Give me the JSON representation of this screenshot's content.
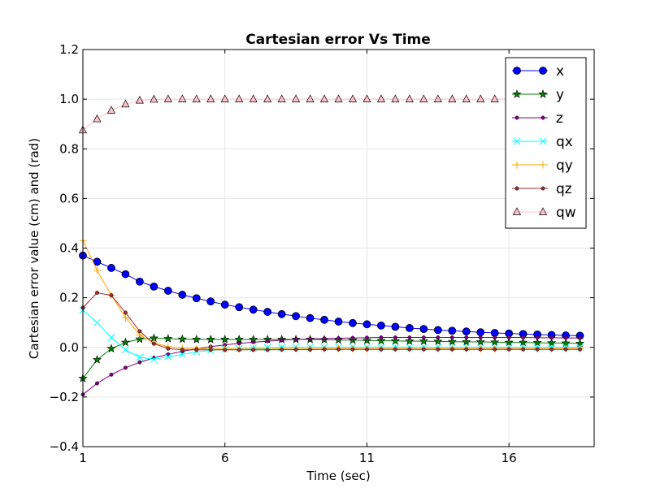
{
  "chart_data": {
    "type": "line",
    "title": "Cartesian error Vs Time",
    "xlabel": "Time (sec)",
    "ylabel": "Cartesian error value (cm) and (rad)",
    "xlim": [
      1,
      19
    ],
    "ylim": [
      -0.4,
      1.2
    ],
    "xticks": [
      1,
      6,
      11,
      16
    ],
    "xtick_labels": [
      "1",
      "6",
      "11",
      "16"
    ],
    "yticks": [
      -0.4,
      -0.2,
      0.0,
      0.2,
      0.4,
      0.6,
      0.8,
      1.0,
      1.2
    ],
    "ytick_labels": [
      "−0.4",
      "−0.2",
      "0.0",
      "0.2",
      "0.4",
      "0.6",
      "0.8",
      "1.0",
      "1.2"
    ],
    "grid": true,
    "legend_position": "top-right",
    "x": [
      1.0,
      1.5,
      2.0,
      2.5,
      3.0,
      3.5,
      4.0,
      4.5,
      5.0,
      5.5,
      6.0,
      6.5,
      7.0,
      7.5,
      8.0,
      8.5,
      9.0,
      9.5,
      10.0,
      10.5,
      11.0,
      11.5,
      12.0,
      12.5,
      13.0,
      13.5,
      14.0,
      14.5,
      15.0,
      15.5,
      16.0,
      16.5,
      17.0,
      17.5,
      18.0,
      18.5
    ],
    "series": [
      {
        "name": "x",
        "color": "#0000ff",
        "marker": "circle",
        "values": [
          0.37,
          0.345,
          0.32,
          0.295,
          0.265,
          0.245,
          0.228,
          0.212,
          0.198,
          0.185,
          0.172,
          0.162,
          0.152,
          0.143,
          0.134,
          0.126,
          0.118,
          0.111,
          0.104,
          0.098,
          0.093,
          0.088,
          0.083,
          0.078,
          0.074,
          0.07,
          0.067,
          0.064,
          0.061,
          0.058,
          0.056,
          0.054,
          0.052,
          0.05,
          0.048,
          0.047
        ]
      },
      {
        "name": "y",
        "color": "#008000",
        "marker": "star",
        "values": [
          -0.125,
          -0.05,
          -0.005,
          0.02,
          0.033,
          0.037,
          0.035,
          0.033,
          0.032,
          0.032,
          0.032,
          0.032,
          0.032,
          0.032,
          0.032,
          0.032,
          0.032,
          0.031,
          0.03,
          0.029,
          0.028,
          0.027,
          0.026,
          0.025,
          0.025,
          0.024,
          0.023,
          0.022,
          0.022,
          0.021,
          0.02,
          0.02,
          0.019,
          0.018,
          0.017,
          0.016
        ]
      },
      {
        "name": "z",
        "color": "#800080",
        "marker": "dot",
        "values": [
          -0.19,
          -0.145,
          -0.11,
          -0.082,
          -0.06,
          -0.042,
          -0.028,
          -0.016,
          -0.006,
          0.003,
          0.01,
          0.016,
          0.021,
          0.025,
          0.029,
          0.032,
          0.034,
          0.036,
          0.037,
          0.038,
          0.039,
          0.04,
          0.04,
          0.04,
          0.04,
          0.04,
          0.04,
          0.04,
          0.04,
          0.04,
          0.04,
          0.04,
          0.039,
          0.039,
          0.038,
          0.038
        ]
      },
      {
        "name": "qx",
        "color": "#00ffff",
        "marker": "x",
        "values": [
          0.15,
          0.1,
          0.04,
          -0.01,
          -0.04,
          -0.048,
          -0.038,
          -0.028,
          -0.018,
          -0.012,
          -0.008,
          -0.005,
          -0.003,
          -0.001,
          0.0,
          0.001,
          0.001,
          0.001,
          0.001,
          0.001,
          0.001,
          0.001,
          0.001,
          0.001,
          0.001,
          0.001,
          0.001,
          0.001,
          0.001,
          0.001,
          0.001,
          0.001,
          0.001,
          0.001,
          0.001,
          0.001
        ]
      },
      {
        "name": "qy",
        "color": "#ffa500",
        "marker": "plus",
        "values": [
          0.43,
          0.31,
          0.21,
          0.12,
          0.05,
          0.018,
          0.003,
          -0.003,
          -0.005,
          -0.006,
          -0.006,
          -0.006,
          -0.006,
          -0.006,
          -0.005,
          -0.005,
          -0.005,
          -0.005,
          -0.005,
          -0.005,
          -0.005,
          -0.005,
          -0.005,
          -0.005,
          -0.005,
          -0.005,
          -0.005,
          -0.005,
          -0.005,
          -0.005,
          -0.005,
          -0.005,
          -0.005,
          -0.005,
          -0.005,
          -0.005
        ]
      },
      {
        "name": "qz",
        "color": "#a52a2a",
        "marker": "dot",
        "values": [
          0.16,
          0.22,
          0.21,
          0.14,
          0.065,
          0.015,
          -0.005,
          -0.01,
          -0.01,
          -0.01,
          -0.01,
          -0.01,
          -0.01,
          -0.01,
          -0.009,
          -0.009,
          -0.009,
          -0.008,
          -0.008,
          -0.008,
          -0.008,
          -0.008,
          -0.008,
          -0.008,
          -0.008,
          -0.008,
          -0.008,
          -0.008,
          -0.008,
          -0.008,
          -0.008,
          -0.008,
          -0.008,
          -0.008,
          -0.008,
          -0.008
        ]
      },
      {
        "name": "qw",
        "color": "#ffc0cb",
        "marker": "triangle",
        "values": [
          0.875,
          0.92,
          0.955,
          0.98,
          0.995,
          0.999,
          1.0,
          1.0,
          1.0,
          1.0,
          1.0,
          1.0,
          1.0,
          1.0,
          1.0,
          1.0,
          1.0,
          1.0,
          1.0,
          1.0,
          1.0,
          1.0,
          1.0,
          1.0,
          1.0,
          1.0,
          1.0,
          1.0,
          1.0,
          1.0,
          1.0,
          1.0,
          1.0,
          1.0,
          1.0,
          1.0
        ]
      }
    ]
  }
}
